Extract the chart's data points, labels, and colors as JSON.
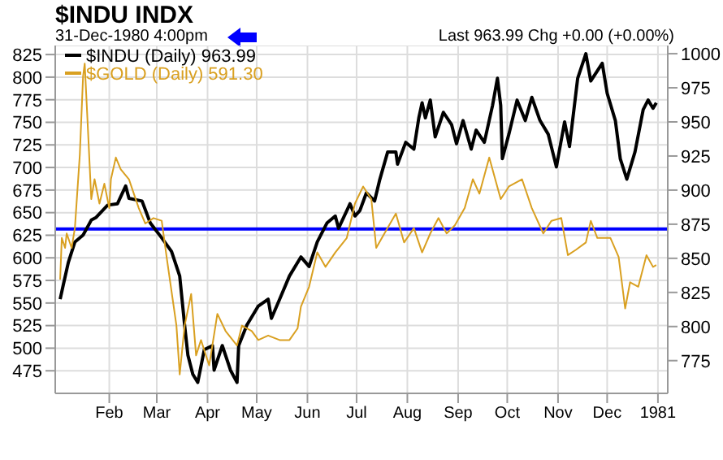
{
  "chart_data": {
    "type": "line",
    "title": "$INDU INDX",
    "subtitle": "31-Dec-1980 4:00pm",
    "annotations": [
      "Last 963.99 Chg +0.00 (+0.00%)"
    ],
    "xlim": [
      "1979-12-30",
      "1981-01-07"
    ],
    "xticks": [
      {
        "value": "1980-02-01",
        "label": "Feb"
      },
      {
        "value": "1980-03-01",
        "label": "Mar"
      },
      {
        "value": "1980-04-01",
        "label": "Apr"
      },
      {
        "value": "1980-05-01",
        "label": "May"
      },
      {
        "value": "1980-06-01",
        "label": "Jun"
      },
      {
        "value": "1980-07-01",
        "label": "Jul"
      },
      {
        "value": "1980-08-01",
        "label": "Aug"
      },
      {
        "value": "1980-09-01",
        "label": "Sep"
      },
      {
        "value": "1980-10-01",
        "label": "Oct"
      },
      {
        "value": "1980-11-01",
        "label": "Nov"
      },
      {
        "value": "1980-12-01",
        "label": "Dec"
      },
      {
        "value": "1981-01-01",
        "label": "1981"
      }
    ],
    "ylim": [
      450,
      835
    ],
    "yticks": [
      475,
      500,
      525,
      550,
      575,
      600,
      625,
      650,
      675,
      700,
      725,
      750,
      775,
      800,
      825
    ],
    "y2lim": [
      751,
      1006
    ],
    "y2ticks": [
      775,
      800,
      825,
      850,
      875,
      900,
      925,
      950,
      975,
      1000
    ],
    "grid": true,
    "legend": "top left",
    "marker": "none",
    "line_style": "solid",
    "ref_lines": [
      {
        "axis": "y",
        "value": 632,
        "color": "#0000ff"
      }
    ],
    "series": [
      {
        "name": "$INDU (Daily) 963.99",
        "color": "#000000",
        "axis": "y2",
        "x": [
          "1980-01-02",
          "1980-01-04",
          "1980-01-07",
          "1980-01-11",
          "1980-01-16",
          "1980-01-21",
          "1980-01-24",
          "1980-01-31",
          "1980-02-06",
          "1980-02-11",
          "1980-02-13",
          "1980-02-21",
          "1980-02-26",
          "1980-03-04",
          "1980-03-10",
          "1980-03-15",
          "1980-03-18",
          "1980-03-20",
          "1980-03-23",
          "1980-03-26",
          "1980-03-30",
          "1980-04-04",
          "1980-04-05",
          "1980-04-10",
          "1980-04-15",
          "1980-04-19",
          "1980-04-20",
          "1980-04-25",
          "1980-05-02",
          "1980-05-08",
          "1980-05-10",
          "1980-05-15",
          "1980-05-21",
          "1980-05-28",
          "1980-06-02",
          "1980-06-07",
          "1980-06-13",
          "1980-06-18",
          "1980-06-20",
          "1980-06-27",
          "1980-06-30",
          "1980-07-03",
          "1980-07-07",
          "1980-07-12",
          "1980-07-15",
          "1980-07-20",
          "1980-07-25",
          "1980-07-26",
          "1980-07-31",
          "1980-08-05",
          "1980-08-08",
          "1980-08-10",
          "1980-08-12",
          "1980-08-15",
          "1980-08-18",
          "1980-08-23",
          "1980-08-28",
          "1980-08-31",
          "1980-09-04",
          "1980-09-09",
          "1980-09-12",
          "1980-09-17",
          "1980-09-22",
          "1980-09-25",
          "1980-09-27",
          "1980-09-28",
          "1980-10-02",
          "1980-10-07",
          "1980-10-12",
          "1980-10-16",
          "1980-10-21",
          "1980-10-26",
          "1980-10-31",
          "1980-11-05",
          "1980-11-08",
          "1980-11-13",
          "1980-11-18",
          "1980-11-21",
          "1980-11-28",
          "1980-12-01",
          "1980-12-06",
          "1980-12-09",
          "1980-12-13",
          "1980-12-18",
          "1980-12-23",
          "1980-12-26",
          "1980-12-29",
          "1980-12-31"
        ],
        "values": [
          820,
          831,
          847,
          862,
          867,
          878,
          880,
          889,
          890,
          903,
          894,
          892,
          876,
          865,
          855,
          837,
          801,
          779,
          765,
          759,
          783,
          786,
          768,
          786,
          768,
          759,
          786,
          801,
          815,
          820,
          806,
          820,
          837,
          851,
          844,
          862,
          876,
          881,
          872,
          890,
          881,
          885,
          898,
          892,
          907,
          928,
          928,
          919,
          935,
          930,
          953,
          964,
          953,
          966,
          939,
          957,
          948,
          934,
          951,
          930,
          944,
          935,
          962,
          982,
          962,
          923,
          941,
          966,
          951,
          968,
          951,
          941,
          917,
          950,
          932,
          982,
          1000,
          980,
          993,
          971,
          951,
          923,
          908,
          928,
          959,
          966,
          960,
          964
        ]
      },
      {
        "name": "$GOLD (Daily) 591.30",
        "color": "#d9a021",
        "x": [
          "1980-01-02",
          "1980-01-03",
          "1980-01-05",
          "1980-01-06",
          "1980-01-09",
          "1980-01-11",
          "1980-01-14",
          "1980-01-16",
          "1980-01-17",
          "1980-01-19",
          "1980-01-21",
          "1980-01-23",
          "1980-01-26",
          "1980-01-29",
          "1980-02-01",
          "1980-02-02",
          "1980-02-05",
          "1980-02-08",
          "1980-02-13",
          "1980-02-16",
          "1980-02-19",
          "1980-02-23",
          "1980-02-28",
          "1980-03-04",
          "1980-03-07",
          "1980-03-10",
          "1980-03-13",
          "1980-03-15",
          "1980-03-18",
          "1980-03-22",
          "1980-03-25",
          "1980-03-28",
          "1980-04-02",
          "1980-04-07",
          "1980-04-12",
          "1980-04-19",
          "1980-04-22",
          "1980-04-28",
          "1980-05-02",
          "1980-05-08",
          "1980-05-15",
          "1980-05-21",
          "1980-05-26",
          "1980-05-28",
          "1980-06-02",
          "1980-06-07",
          "1980-06-12",
          "1980-06-18",
          "1980-06-25",
          "1980-06-30",
          "1980-07-05",
          "1980-07-10",
          "1980-07-13",
          "1980-07-18",
          "1980-07-25",
          "1980-07-30",
          "1980-08-05",
          "1980-08-10",
          "1980-08-15",
          "1980-08-20",
          "1980-08-25",
          "1980-08-30",
          "1980-09-05",
          "1980-09-10",
          "1980-09-14",
          "1980-09-20",
          "1980-09-27",
          "1980-10-02",
          "1980-10-10",
          "1980-10-16",
          "1980-10-23",
          "1980-10-28",
          "1980-11-03",
          "1980-11-07",
          "1980-11-12",
          "1980-11-18",
          "1980-11-21",
          "1980-11-25",
          "1980-12-03",
          "1980-12-08",
          "1980-12-12",
          "1980-12-15",
          "1980-12-20",
          "1980-12-25",
          "1980-12-29",
          "1980-12-31"
        ],
        "values": [
          576,
          622,
          611,
          627,
          611,
          633,
          714,
          801,
          815,
          741,
          665,
          687,
          660,
          682,
          655,
          687,
          711,
          698,
          687,
          671,
          655,
          638,
          644,
          641,
          601,
          563,
          525,
          471,
          525,
          560,
          492,
          509,
          481,
          538,
          519,
          503,
          525,
          519,
          509,
          514,
          509,
          509,
          522,
          546,
          568,
          606,
          590,
          606,
          622,
          660,
          679,
          665,
          611,
          627,
          649,
          617,
          633,
          606,
          627,
          644,
          627,
          636,
          655,
          687,
          671,
          711,
          665,
          679,
          687,
          655,
          627,
          641,
          644,
          603,
          609,
          617,
          641,
          622,
          622,
          601,
          544,
          573,
          568,
          603,
          590,
          592
        ]
      }
    ]
  }
}
